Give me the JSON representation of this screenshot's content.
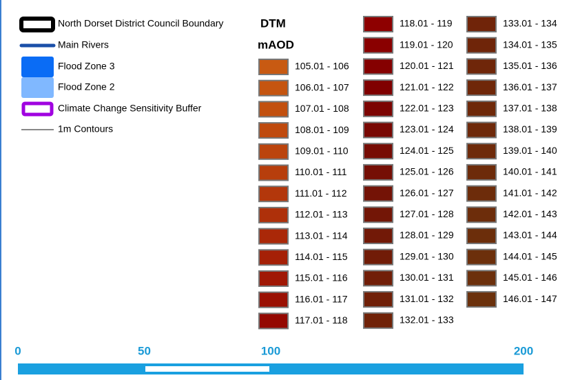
{
  "legend": {
    "items": [
      {
        "label": "North Dorset District Council Boundary"
      },
      {
        "label": "Main Rivers"
      },
      {
        "label": "Flood Zone 3"
      },
      {
        "label": "Flood Zone 2"
      },
      {
        "label": "Climate Change Sensitivity Buffer"
      },
      {
        "label": "1m Contours"
      }
    ]
  },
  "dtm": {
    "title": "DTM",
    "unit": "mAOD",
    "columns": [
      [
        {
          "label": "105.01 - 106",
          "color": "#c85a12"
        },
        {
          "label": "106.01 - 107",
          "color": "#c55510"
        },
        {
          "label": "107.01 - 108",
          "color": "#c2500f"
        },
        {
          "label": "108.01 - 109",
          "color": "#bf4a0e"
        },
        {
          "label": "109.01 - 110",
          "color": "#bb440d"
        },
        {
          "label": "110.01 - 111",
          "color": "#b73e0c"
        },
        {
          "label": "111.01 - 112",
          "color": "#b3370b"
        },
        {
          "label": "112.01 - 113",
          "color": "#ae300a"
        },
        {
          "label": "113.01 - 114",
          "color": "#aa2808"
        },
        {
          "label": "114.01 - 115",
          "color": "#a52006"
        },
        {
          "label": "115.01 - 116",
          "color": "#a01805"
        },
        {
          "label": "116.01 - 117",
          "color": "#9a1003"
        },
        {
          "label": "117.01 - 118",
          "color": "#940801"
        }
      ],
      [
        {
          "label": "118.01 - 119",
          "color": "#8e0000"
        },
        {
          "label": "119.01 - 120",
          "color": "#8a0000"
        },
        {
          "label": "120.01 - 121",
          "color": "#850000"
        },
        {
          "label": "121.01 - 122",
          "color": "#800000"
        },
        {
          "label": "122.01 - 123",
          "color": "#7c0402"
        },
        {
          "label": "123.01 - 124",
          "color": "#790803"
        },
        {
          "label": "124.01 - 125",
          "color": "#770c04"
        },
        {
          "label": "125.01 - 126",
          "color": "#750f05"
        },
        {
          "label": "126.01 - 127",
          "color": "#741306"
        },
        {
          "label": "127.01 - 128",
          "color": "#731606"
        },
        {
          "label": "128.01 - 129",
          "color": "#721907"
        },
        {
          "label": "129.01 - 130",
          "color": "#711c07"
        },
        {
          "label": "130.01 - 131",
          "color": "#711e08"
        },
        {
          "label": "131.01 - 132",
          "color": "#702008"
        },
        {
          "label": "132.01 - 133",
          "color": "#702208"
        }
      ],
      [
        {
          "label": "133.01 - 134",
          "color": "#702409"
        },
        {
          "label": "134.01 - 135",
          "color": "#6f2509"
        },
        {
          "label": "135.01 - 136",
          "color": "#6f2609"
        },
        {
          "label": "136.01 - 137",
          "color": "#6f2709"
        },
        {
          "label": "137.01 - 138",
          "color": "#6e2809"
        },
        {
          "label": "138.01 - 139",
          "color": "#6e290a"
        },
        {
          "label": "139.01 - 140",
          "color": "#6e2a0a"
        },
        {
          "label": "140.01 - 141",
          "color": "#6d2b0a"
        },
        {
          "label": "141.01 - 142",
          "color": "#6d2c0a"
        },
        {
          "label": "142.01 - 143",
          "color": "#6d2d0b"
        },
        {
          "label": "143.01 - 144",
          "color": "#6c2e0b"
        },
        {
          "label": "144.01 - 145",
          "color": "#6c2f0b"
        },
        {
          "label": "145.01 - 146",
          "color": "#6c300c"
        },
        {
          "label": "146.01 - 147",
          "color": "#6b310c"
        }
      ]
    ]
  },
  "scale": {
    "ticks": [
      0,
      50,
      100,
      200
    ]
  }
}
